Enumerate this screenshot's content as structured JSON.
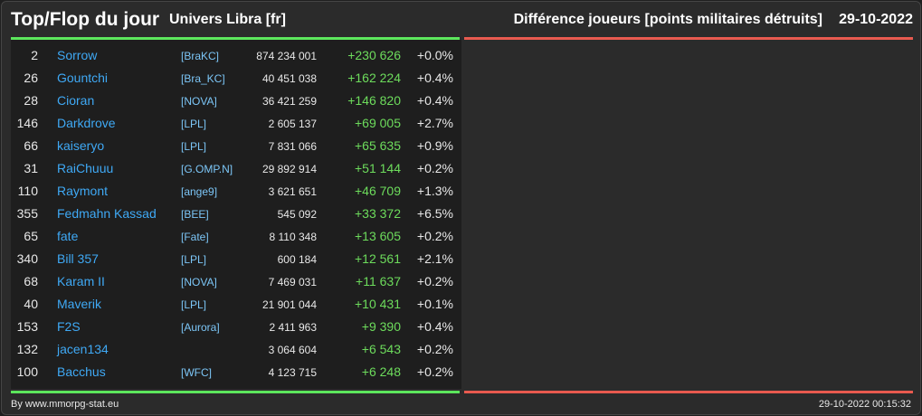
{
  "header": {
    "title": "Top/Flop du jour",
    "subtitle": "Univers Libra [fr]",
    "metric": "Différence joueurs [points militaires détruits]",
    "date": "29-10-2022"
  },
  "colors": {
    "green": "#5ce65c",
    "red": "#e85a4f",
    "link": "#3fa9f5",
    "positive": "#6ddc5c"
  },
  "rows": [
    {
      "rank": "2",
      "name": "Sorrow",
      "alliance": "[BraKC]",
      "points": "874 234 001",
      "diff": "+230 626",
      "pct": "+0.0%"
    },
    {
      "rank": "26",
      "name": "Gountchi",
      "alliance": "[Bra_KC]",
      "points": "40 451 038",
      "diff": "+162 224",
      "pct": "+0.4%"
    },
    {
      "rank": "28",
      "name": "Cioran",
      "alliance": "[NOVA]",
      "points": "36 421 259",
      "diff": "+146 820",
      "pct": "+0.4%"
    },
    {
      "rank": "146",
      "name": "Darkdrove",
      "alliance": "[LPL]",
      "points": "2 605 137",
      "diff": "+69 005",
      "pct": "+2.7%"
    },
    {
      "rank": "66",
      "name": "kaiseryo",
      "alliance": "[LPL]",
      "points": "7 831 066",
      "diff": "+65 635",
      "pct": "+0.9%"
    },
    {
      "rank": "31",
      "name": "RaiChuuu",
      "alliance": "[G.OMP.N]",
      "points": "29 892 914",
      "diff": "+51 144",
      "pct": "+0.2%"
    },
    {
      "rank": "110",
      "name": "Raymont",
      "alliance": "[ange9]",
      "points": "3 621 651",
      "diff": "+46 709",
      "pct": "+1.3%"
    },
    {
      "rank": "355",
      "name": "Fedmahn Kassad",
      "alliance": "[BEE]",
      "points": "545 092",
      "diff": "+33 372",
      "pct": "+6.5%"
    },
    {
      "rank": "65",
      "name": "fate",
      "alliance": "[Fate]",
      "points": "8 110 348",
      "diff": "+13 605",
      "pct": "+0.2%"
    },
    {
      "rank": "340",
      "name": "Bill 357",
      "alliance": "[LPL]",
      "points": "600 184",
      "diff": "+12 561",
      "pct": "+2.1%"
    },
    {
      "rank": "68",
      "name": "Karam II",
      "alliance": "[NOVA]",
      "points": "7 469 031",
      "diff": "+11 637",
      "pct": "+0.2%"
    },
    {
      "rank": "40",
      "name": "Maverik",
      "alliance": "[LPL]",
      "points": "21 901 044",
      "diff": "+10 431",
      "pct": "+0.1%"
    },
    {
      "rank": "153",
      "name": "F2S",
      "alliance": "[Aurora]",
      "points": "2 411 963",
      "diff": "+9 390",
      "pct": "+0.4%"
    },
    {
      "rank": "132",
      "name": "jacen134",
      "alliance": "",
      "points": "3 064 604",
      "diff": "+6 543",
      "pct": "+0.2%"
    },
    {
      "rank": "100",
      "name": "Bacchus",
      "alliance": "[WFC]",
      "points": "4 123 715",
      "diff": "+6 248",
      "pct": "+0.2%"
    }
  ],
  "footer": {
    "credit": "By www.mmorpg-stat.eu",
    "timestamp": "29-10-2022 00:15:32"
  }
}
